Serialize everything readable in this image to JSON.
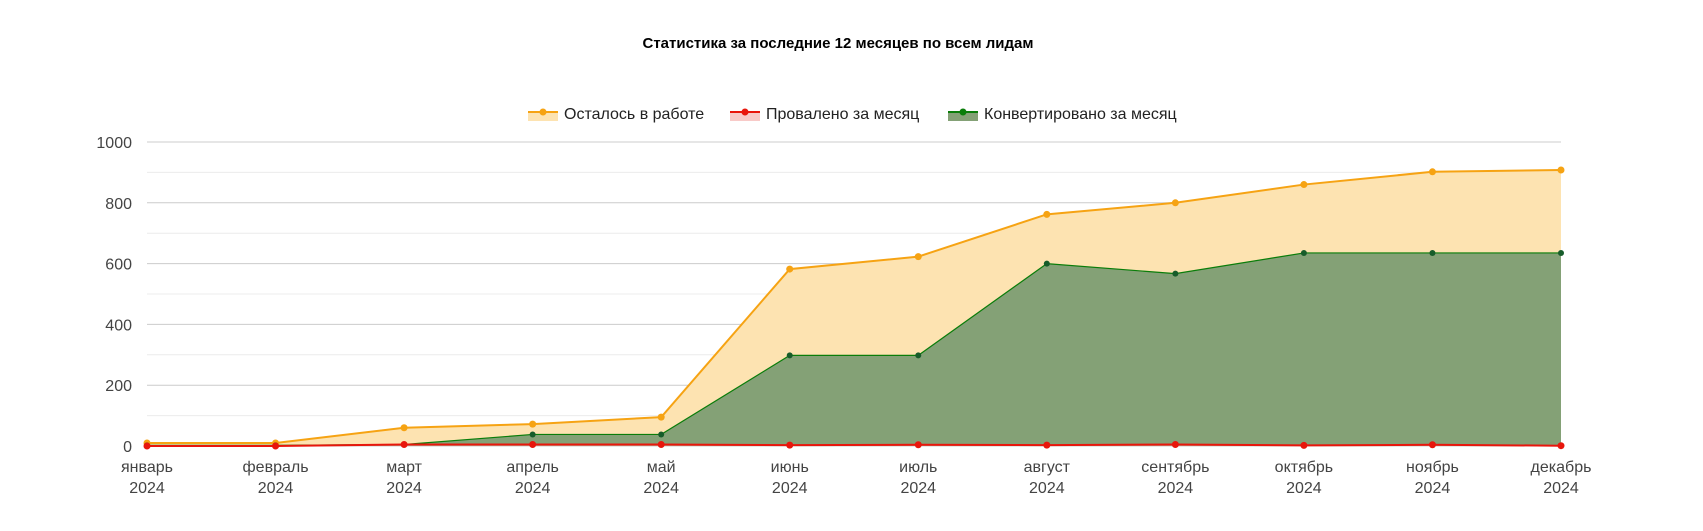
{
  "chart_data": {
    "type": "area",
    "title": "Статистика за последние 12 месяцев по всем лидам",
    "categories": [
      [
        "январь",
        "2024"
      ],
      [
        "февраль",
        "2024"
      ],
      [
        "март",
        "2024"
      ],
      [
        "апрель",
        "2024"
      ],
      [
        "май",
        "2024"
      ],
      [
        "июнь",
        "2024"
      ],
      [
        "июль",
        "2024"
      ],
      [
        "август",
        "2024"
      ],
      [
        "сентябрь",
        "2024"
      ],
      [
        "октябрь",
        "2024"
      ],
      [
        "ноябрь",
        "2024"
      ],
      [
        "декабрь",
        "2024"
      ]
    ],
    "ylim": [
      0,
      1000
    ],
    "yticks": [
      "0",
      "200",
      "400",
      "600",
      "800",
      "1000"
    ],
    "grid": true,
    "legend_position": "top-center",
    "series": [
      {
        "name": "Осталось в работе",
        "color": "#f6a313",
        "fill": "#fde3b1",
        "values": [
          10,
          10,
          60,
          72,
          95,
          582,
          623,
          762,
          800,
          860,
          902,
          908
        ]
      },
      {
        "name": "Провалено за месяц",
        "color": "#e8160c",
        "fill": "#f5b3b0",
        "values": [
          0,
          0,
          5,
          5,
          5,
          3,
          4,
          3,
          5,
          2,
          4,
          1
        ]
      },
      {
        "name": "Конвертировано за месяц",
        "color": "#0a7d0a",
        "fill": "#84a176",
        "values": [
          2,
          2,
          5,
          38,
          38,
          298,
          298,
          600,
          567,
          635,
          635,
          635
        ]
      }
    ]
  }
}
